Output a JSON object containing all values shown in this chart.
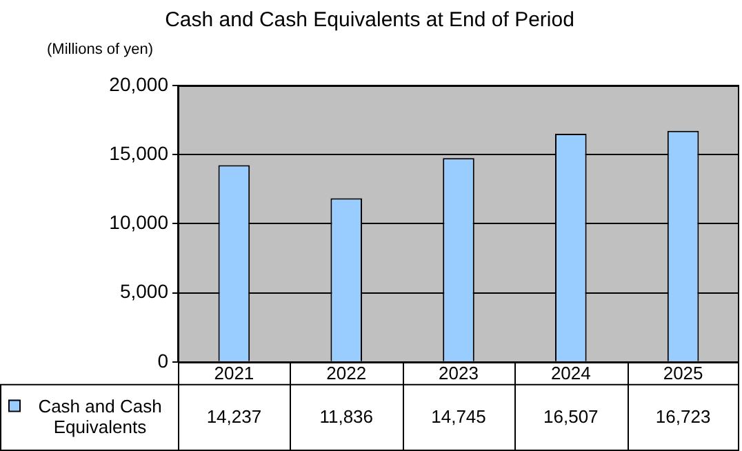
{
  "chart_data": {
    "type": "bar",
    "title": "Cash and Cash Equivalents at End of Period",
    "ylabel": "(Millions of yen)",
    "categories": [
      "2021",
      "2022",
      "2023",
      "2024",
      "2025"
    ],
    "series": [
      {
        "name": "Cash and Cash Equivalents",
        "color": "#99ccff",
        "values": [
          14237,
          11836,
          14745,
          16507,
          16723
        ],
        "value_labels": [
          "14,237",
          "11,836",
          "14,745",
          "16,507",
          "16,723"
        ]
      }
    ],
    "ylim": [
      0,
      20000
    ],
    "yticks": [
      0,
      {
        "value": 5000,
        "label": "5,000"
      },
      {
        "value": 10000,
        "label": "10,000"
      },
      {
        "value": 15000,
        "label": "15,000"
      },
      {
        "value": 20000,
        "label": "20,000"
      }
    ],
    "grid": "y",
    "legend": "bottom"
  }
}
